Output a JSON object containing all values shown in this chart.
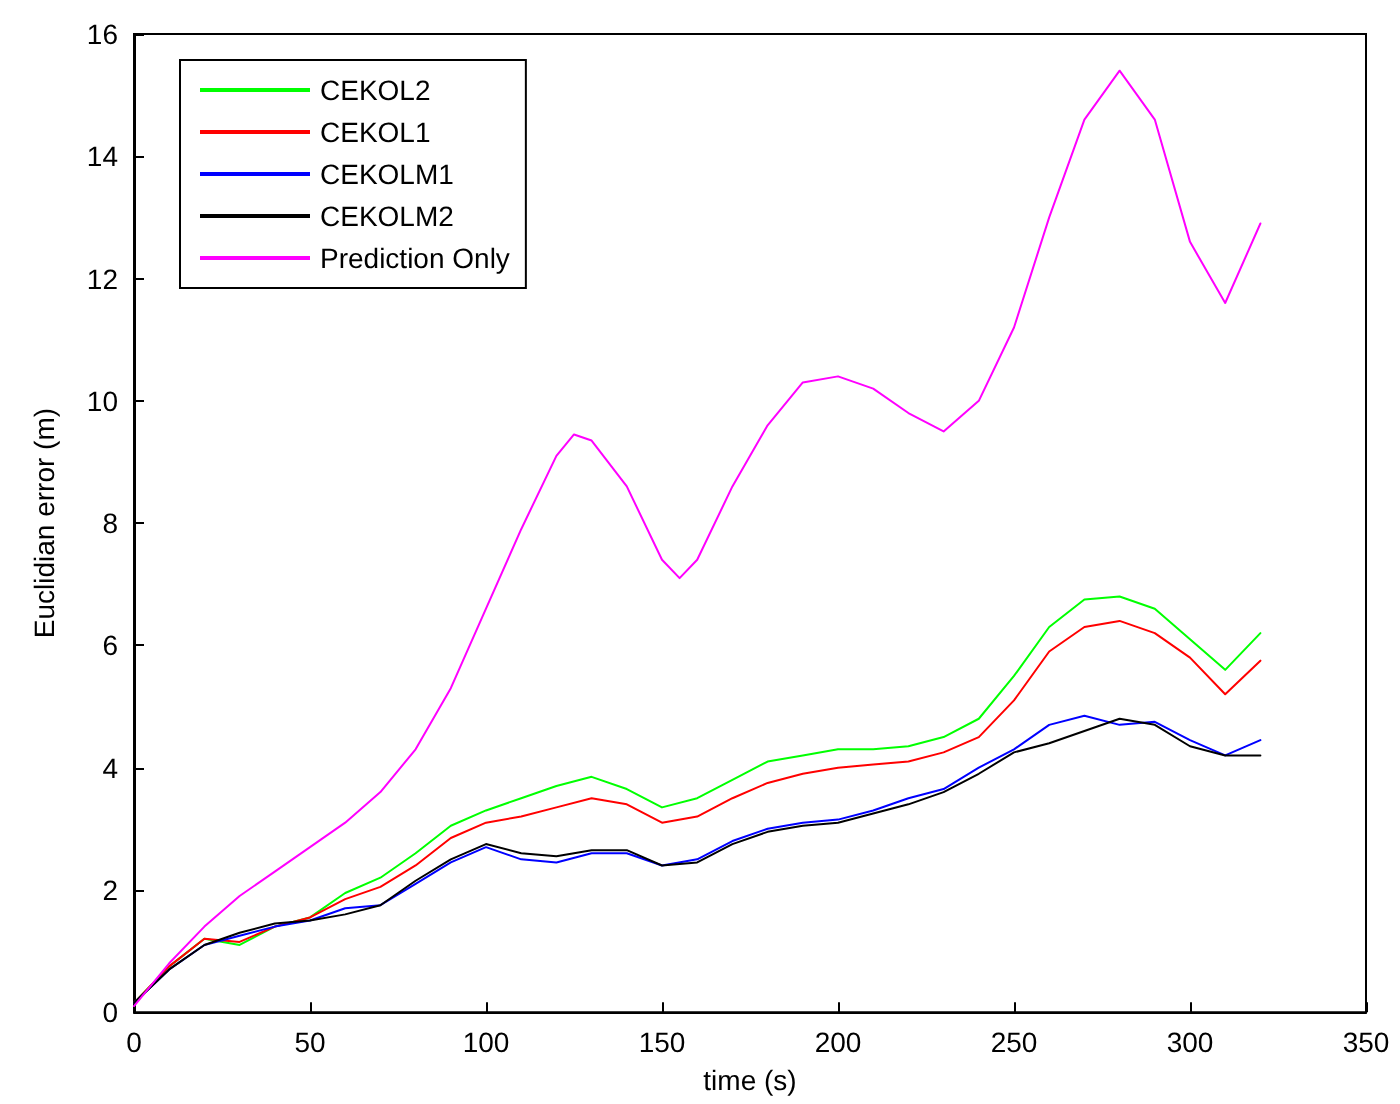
{
  "chart_data": {
    "type": "line",
    "xlabel": "time (s)",
    "ylabel": "Euclidian error (m)",
    "x": [
      0,
      10,
      20,
      30,
      40,
      50,
      60,
      70,
      80,
      90,
      100,
      110,
      120,
      130,
      140,
      150,
      160,
      170,
      180,
      190,
      200,
      210,
      220,
      230,
      240,
      250,
      260,
      270,
      280,
      290,
      300,
      310,
      320
    ],
    "xlim": [
      0,
      350
    ],
    "xticks": [
      0,
      50,
      100,
      150,
      200,
      250,
      300,
      350
    ],
    "ylim": [
      0,
      16
    ],
    "yticks": [
      0,
      2,
      4,
      6,
      8,
      10,
      12,
      14,
      16
    ],
    "grid": false,
    "legend": "top left",
    "marker": "none",
    "line_style": "solid",
    "series": [
      {
        "name": "CEKOL2",
        "color": "#00ff00",
        "values": [
          0.15,
          0.75,
          1.2,
          1.1,
          1.4,
          1.55,
          1.95,
          2.2,
          2.6,
          3.05,
          3.3,
          3.5,
          3.7,
          3.85,
          3.65,
          3.35,
          3.5,
          3.8,
          4.1,
          4.2,
          4.3,
          4.3,
          4.35,
          4.5,
          4.8,
          5.5,
          6.3,
          6.75,
          6.8,
          6.6,
          6.1,
          5.6,
          6.2
        ]
      },
      {
        "name": "CEKOL1",
        "color": "#ff0000",
        "values": [
          0.15,
          0.75,
          1.2,
          1.15,
          1.4,
          1.55,
          1.85,
          2.05,
          2.4,
          2.85,
          3.1,
          3.2,
          3.35,
          3.5,
          3.4,
          3.1,
          3.2,
          3.5,
          3.75,
          3.9,
          4.0,
          4.05,
          4.1,
          4.25,
          4.5,
          5.1,
          5.9,
          6.3,
          6.4,
          6.2,
          5.8,
          5.2,
          5.75
        ]
      },
      {
        "name": "CEKOLM1",
        "color": "#0000ff",
        "values": [
          0.15,
          0.7,
          1.1,
          1.25,
          1.4,
          1.5,
          1.7,
          1.75,
          2.1,
          2.45,
          2.7,
          2.5,
          2.45,
          2.6,
          2.6,
          2.4,
          2.5,
          2.8,
          3.0,
          3.1,
          3.15,
          3.3,
          3.5,
          3.65,
          4.0,
          4.3,
          4.7,
          4.85,
          4.7,
          4.75,
          4.45,
          4.2,
          4.45
        ]
      },
      {
        "name": "CEKOLM2",
        "color": "#000000",
        "values": [
          0.15,
          0.7,
          1.1,
          1.3,
          1.45,
          1.5,
          1.6,
          1.75,
          2.15,
          2.5,
          2.75,
          2.6,
          2.55,
          2.65,
          2.65,
          2.4,
          2.45,
          2.75,
          2.95,
          3.05,
          3.1,
          3.25,
          3.4,
          3.6,
          3.9,
          4.25,
          4.4,
          4.6,
          4.8,
          4.7,
          4.35,
          4.2,
          4.2
        ]
      },
      {
        "name": "Prediction Only",
        "color": "#ff00ff",
        "x": [
          0,
          10,
          20,
          30,
          40,
          50,
          60,
          70,
          80,
          90,
          100,
          110,
          120,
          125,
          130,
          140,
          150,
          155,
          160,
          170,
          180,
          190,
          200,
          210,
          220,
          230,
          240,
          250,
          260,
          270,
          280,
          290,
          300,
          310,
          320
        ],
        "values": [
          0.1,
          0.8,
          1.4,
          1.9,
          2.3,
          2.7,
          3.1,
          3.6,
          4.3,
          5.3,
          6.6,
          7.9,
          9.1,
          9.45,
          9.35,
          8.6,
          7.4,
          7.1,
          7.4,
          8.6,
          9.6,
          10.3,
          10.4,
          10.2,
          9.8,
          9.5,
          10.0,
          11.2,
          13.0,
          14.6,
          15.4,
          14.6,
          12.6,
          11.6,
          12.9
        ]
      }
    ]
  }
}
